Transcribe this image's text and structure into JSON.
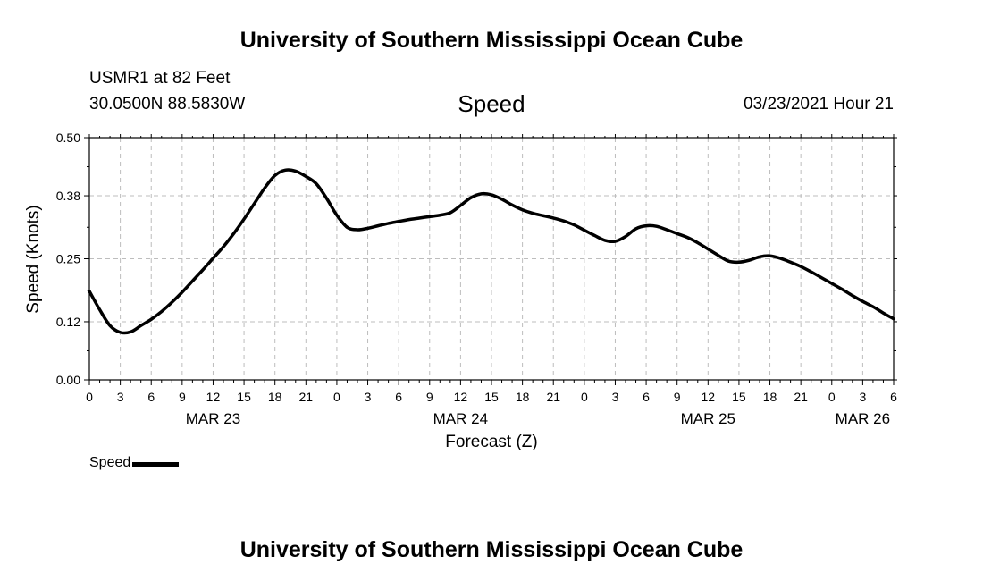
{
  "header": {
    "title": "University of Southern Mississippi Ocean Cube",
    "station": "USMR1 at 82 Feet",
    "coords": "30.0500N 88.5830W",
    "subtitle": "Speed",
    "date": "03/23/2021 Hour 21"
  },
  "footer": {
    "title": "University of Southern Mississippi Ocean Cube"
  },
  "legend": {
    "label": "Speed"
  },
  "colors": {
    "line": "#000000",
    "grid": "#bdbdbd",
    "axis": "#000000"
  },
  "chart_data": {
    "type": "line",
    "xlabel": "Forecast (Z)",
    "ylabel": "Speed (Knots)",
    "x_unit": "hours from 0Z MAR 23",
    "xlim": [
      0,
      78
    ],
    "ylim": [
      0.0,
      0.5
    ],
    "yticks": [
      0.0,
      0.12,
      0.25,
      0.38,
      0.5
    ],
    "ytick_labels": [
      "0.00",
      "0.12",
      "0.25",
      "0.38",
      "0.50"
    ],
    "xticks": [
      0,
      3,
      6,
      9,
      12,
      15,
      18,
      21,
      24,
      27,
      30,
      33,
      36,
      39,
      42,
      45,
      48,
      51,
      54,
      57,
      60,
      63,
      66,
      69,
      72,
      75,
      78
    ],
    "xtick_labels": [
      "0",
      "3",
      "6",
      "9",
      "12",
      "15",
      "18",
      "21",
      "0",
      "3",
      "6",
      "9",
      "12",
      "15",
      "18",
      "21",
      "0",
      "3",
      "6",
      "9",
      "12",
      "15",
      "18",
      "21",
      "0",
      "3",
      "6"
    ],
    "day_labels": [
      {
        "x": 12,
        "label": "MAR 23"
      },
      {
        "x": 36,
        "label": "MAR 24"
      },
      {
        "x": 60,
        "label": "MAR 25"
      },
      {
        "x": 75,
        "label": "MAR 26"
      }
    ],
    "grid": true,
    "legend_position": "bottom-left",
    "series": [
      {
        "name": "Speed",
        "x": [
          0,
          1,
          2,
          3,
          4,
          5,
          6,
          7,
          8,
          9,
          10,
          11,
          12,
          13,
          14,
          15,
          16,
          17,
          18,
          19,
          20,
          21,
          22,
          23,
          24,
          25,
          26,
          27,
          28,
          29,
          30,
          31,
          32,
          33,
          34,
          35,
          36,
          37,
          38,
          39,
          40,
          41,
          42,
          43,
          44,
          45,
          46,
          47,
          48,
          49,
          50,
          51,
          52,
          53,
          54,
          55,
          56,
          57,
          58,
          59,
          60,
          61,
          62,
          63,
          64,
          65,
          66,
          67,
          68,
          69,
          70,
          71,
          72,
          73,
          74,
          75,
          76,
          77,
          78
        ],
        "values": [
          0.183,
          0.145,
          0.112,
          0.098,
          0.099,
          0.112,
          0.125,
          0.141,
          0.16,
          0.181,
          0.204,
          0.227,
          0.251,
          0.275,
          0.302,
          0.332,
          0.364,
          0.396,
          0.422,
          0.433,
          0.431,
          0.42,
          0.405,
          0.375,
          0.34,
          0.315,
          0.31,
          0.313,
          0.318,
          0.323,
          0.327,
          0.331,
          0.334,
          0.337,
          0.34,
          0.345,
          0.36,
          0.376,
          0.384,
          0.382,
          0.373,
          0.361,
          0.351,
          0.344,
          0.339,
          0.334,
          0.328,
          0.32,
          0.309,
          0.298,
          0.288,
          0.286,
          0.296,
          0.312,
          0.318,
          0.317,
          0.31,
          0.302,
          0.294,
          0.283,
          0.27,
          0.257,
          0.245,
          0.243,
          0.247,
          0.254,
          0.256,
          0.251,
          0.243,
          0.234,
          0.223,
          0.211,
          0.199,
          0.187,
          0.174,
          0.162,
          0.151,
          0.138,
          0.126
        ]
      }
    ]
  }
}
